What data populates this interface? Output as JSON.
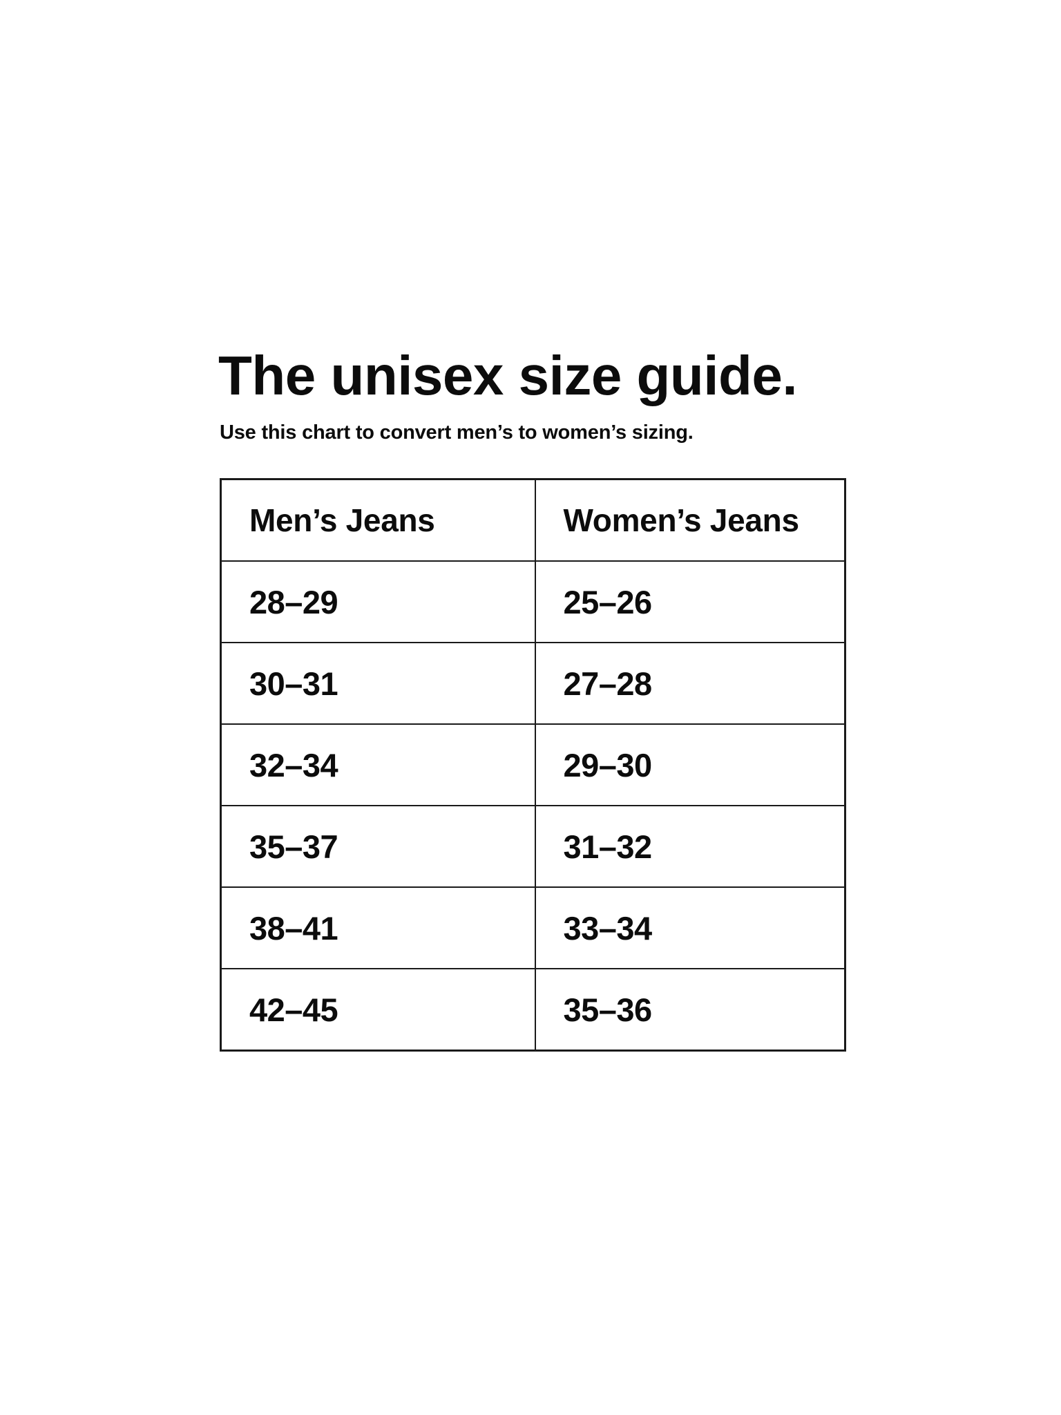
{
  "page": {
    "title": "The unisex size guide.",
    "subtitle": "Use this chart to convert men’s to women’s sizing."
  },
  "chart_data": {
    "type": "table",
    "title": "The unisex size guide.",
    "columns": [
      "Men’s Jeans",
      "Women’s Jeans"
    ],
    "rows": [
      [
        "28–29",
        "25–26"
      ],
      [
        "30–31",
        "27–28"
      ],
      [
        "32–34",
        "29–30"
      ],
      [
        "35–37",
        "31–32"
      ],
      [
        "38–41",
        "33–34"
      ],
      [
        "42–45",
        "35–36"
      ]
    ]
  },
  "colors": {
    "text": "#0c0c0c",
    "border": "#1a1a1a",
    "background": "#ffffff"
  }
}
